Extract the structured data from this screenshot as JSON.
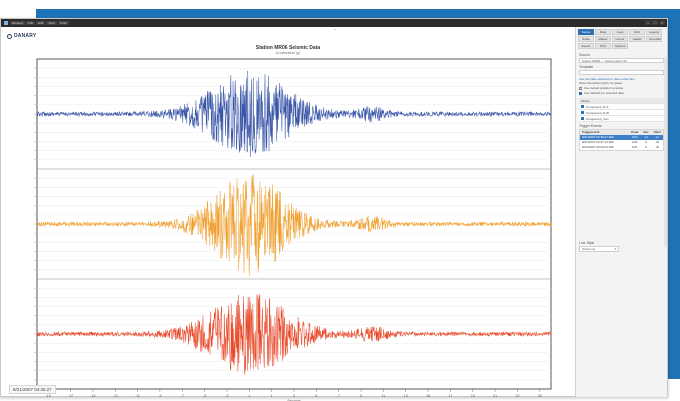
{
  "window": {
    "menu_items": [
      "Danaery",
      "File",
      "Edit",
      "View",
      "Tools"
    ],
    "controls": [
      "–",
      "□",
      "×"
    ]
  },
  "brand": {
    "name": "DANARY"
  },
  "chart": {
    "title": "Station MR06 Seismic Data",
    "subtitle": "Acceleration (g)"
  },
  "timestamp": "8/21/2007 04:35:27",
  "colors": {
    "blue": "#3a56a8",
    "orange": "#f0a030",
    "red": "#e8492a",
    "accent": "#1f73b7"
  },
  "panel": {
    "tabs": [
      "Series",
      "Data",
      "Axes",
      "Grid",
      "Legend",
      "Scale",
      "Marker",
      "Cursor",
      "Labels",
      "Annotations",
      "Export",
      "Print",
      "Options"
    ],
    "active_tab": 0,
    "source_label": "Source",
    "source_value": "Station MR06 — Seismograph 3C",
    "template_label": "Template",
    "template_value": "",
    "link_text": "Use template selected for data series files",
    "option1": "Show Templates   Apply Template",
    "option2": "Use default gradient template",
    "option3": "Use defaults for selected data",
    "series_header": "Series",
    "series": [
      "Component_N-S",
      "Component_E-W",
      "Component_Vert"
    ],
    "trig_label": "Trigger Events",
    "table_headers": [
      "Triggered At",
      "Peak",
      "Dur",
      "Filter"
    ],
    "table_rows": [
      [
        "8/21/2007 04:35:27.000",
        "0.04",
        "14",
        "on"
      ],
      [
        "8/21/2007 04:37:12.500",
        "0.01",
        "6",
        "off"
      ],
      [
        "8/21/2007 04:40:03.250",
        "0.01",
        "5",
        "off"
      ]
    ],
    "style_label": "Line Style",
    "style_value": "Solid Line"
  },
  "chart_data": {
    "type": "line",
    "title": "Station MR06 Seismic Data",
    "subtitle": "Acceleration (g)",
    "xlabel": "Seconds",
    "x_ticks": [
      -19,
      -17,
      -15,
      -13,
      -11,
      -9,
      -7,
      -5,
      -3,
      -1,
      1,
      3,
      5,
      7,
      9,
      11,
      13,
      15,
      17,
      19,
      21,
      23,
      25
    ],
    "xlim": [
      -20,
      26
    ],
    "series": [
      {
        "color": "#3a56a8",
        "peak_time": -1,
        "peak_amp": 0.8,
        "burst_width": 4.5,
        "baseline_amp": 0.04
      },
      {
        "color": "#f0a030",
        "peak_time": -1,
        "peak_amp": 0.95,
        "burst_width": 4,
        "baseline_amp": 0.04
      },
      {
        "color": "#e8492a",
        "peak_time": -1,
        "peak_amp": 0.75,
        "burst_width": 4.5,
        "baseline_amp": 0.04
      }
    ],
    "grid": true
  }
}
